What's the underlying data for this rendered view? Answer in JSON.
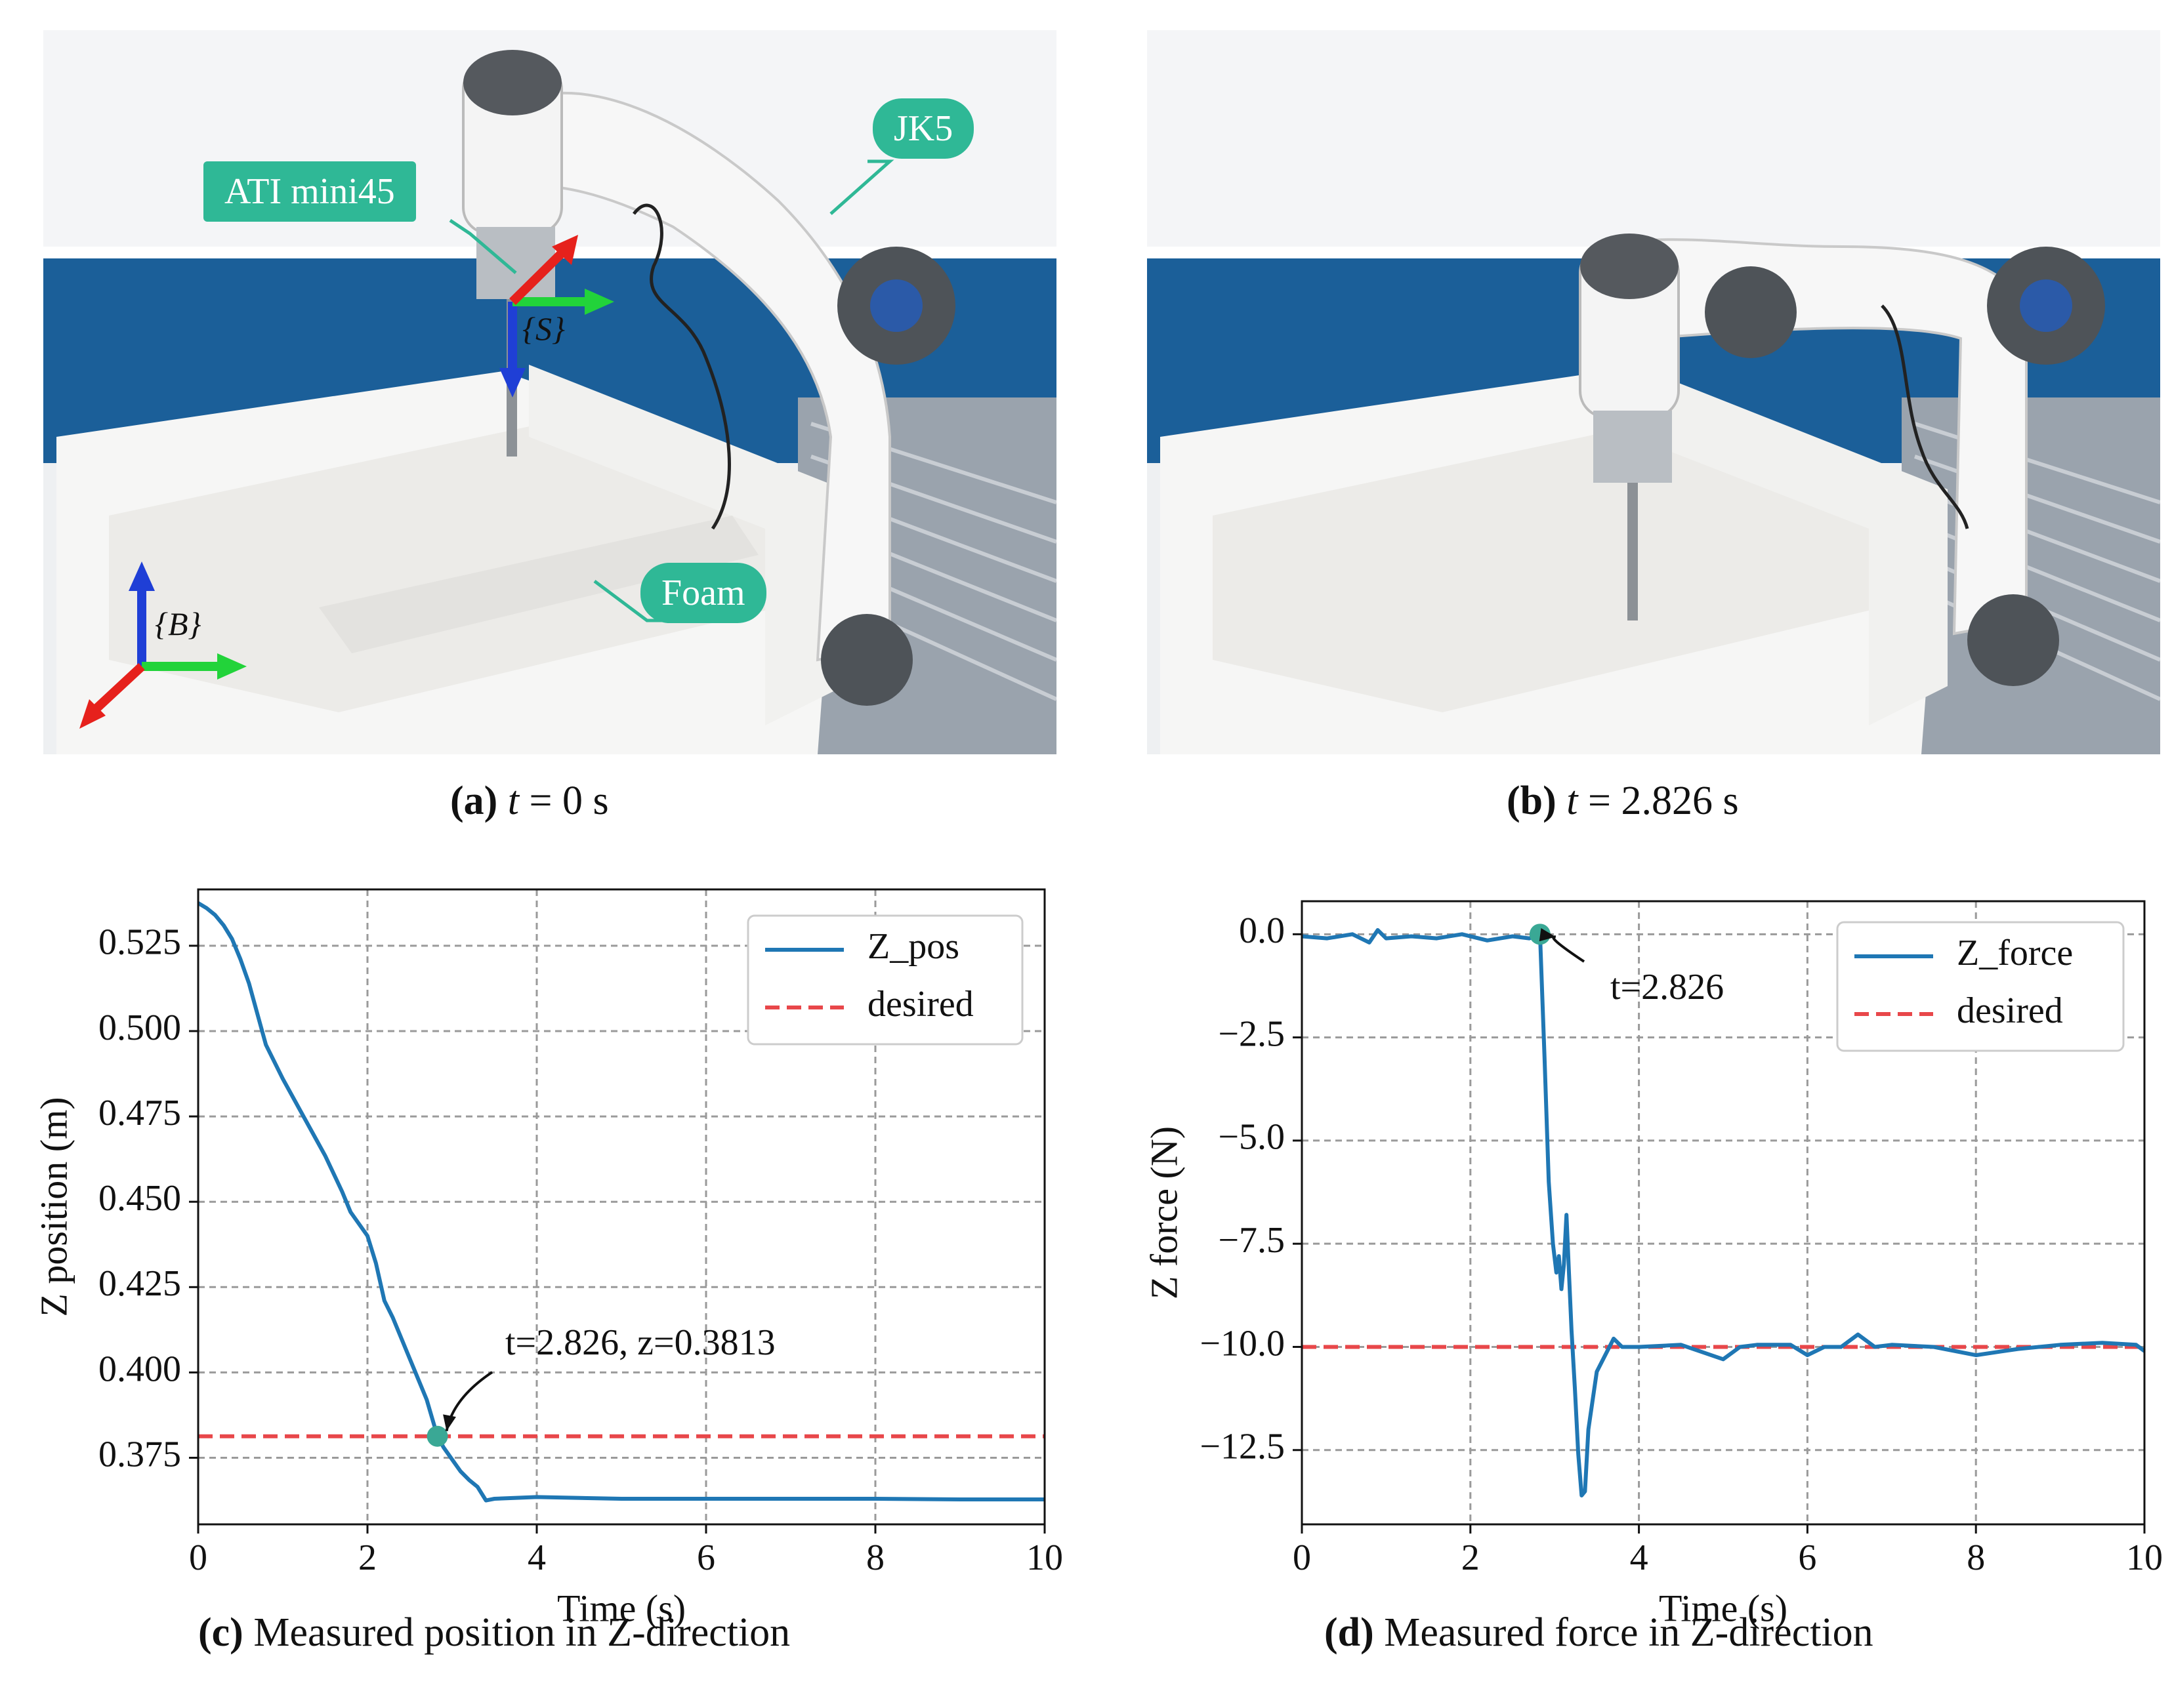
{
  "panels": {
    "a": {
      "letter": "(a)",
      "caption_var": "t",
      "caption_eq": " = 0 s",
      "labels": {
        "sensor": "ATI mini45",
        "robot": "JK5",
        "foam": "Foam",
        "frame_s": "{S}",
        "frame_b": "{B}"
      }
    },
    "b": {
      "letter": "(b)",
      "caption_var": "t",
      "caption_eq": " = 2.826 s"
    },
    "c": {
      "letter": "(c)",
      "caption_text": " Measured position in Z-direction"
    },
    "d": {
      "letter": "(d)",
      "caption_text": " Measured force in Z-direction"
    }
  },
  "colors": {
    "series": "#1f77b4",
    "desired": "#e8474a",
    "marker": "#3aa895",
    "callout": "#2fb896"
  },
  "chart_data": [
    {
      "type": "line",
      "xlabel": "Time (s)",
      "ylabel": "Z position (m)",
      "xlim": [
        0,
        10
      ],
      "ylim": [
        0.3555,
        0.5415
      ],
      "xticks": [
        0,
        2,
        4,
        6,
        8,
        10
      ],
      "yticks": [
        0.375,
        0.4,
        0.425,
        0.45,
        0.475,
        0.5,
        0.525
      ],
      "ytick_labels": [
        "0.375",
        "0.400",
        "0.425",
        "0.450",
        "0.475",
        "0.500",
        "0.525"
      ],
      "grid": true,
      "legend": "top-right",
      "legend_entries": [
        "Z_pos",
        "desired"
      ],
      "series": [
        {
          "name": "Z_pos",
          "x": [
            0,
            0.1,
            0.2,
            0.3,
            0.4,
            0.5,
            0.6,
            0.7,
            0.8,
            0.9,
            1.0,
            1.2,
            1.4,
            1.5,
            1.7,
            1.8,
            2.0,
            2.1,
            2.2,
            2.3,
            2.5,
            2.6,
            2.7,
            2.826,
            2.9,
            3.0,
            3.1,
            3.2,
            3.3,
            3.4,
            3.5,
            4.0,
            5.0,
            6.0,
            7.0,
            8.0,
            9.0,
            10.0
          ],
          "y": [
            0.5375,
            0.536,
            0.534,
            0.531,
            0.527,
            0.521,
            0.514,
            0.505,
            0.496,
            0.491,
            0.486,
            0.477,
            0.468,
            0.4635,
            0.453,
            0.447,
            0.44,
            0.432,
            0.421,
            0.416,
            0.404,
            0.398,
            0.392,
            0.3813,
            0.378,
            0.3745,
            0.371,
            0.3685,
            0.3665,
            0.3625,
            0.363,
            0.3635,
            0.363,
            0.363,
            0.363,
            0.363,
            0.3628,
            0.3628
          ]
        },
        {
          "name": "desired",
          "x": [
            0,
            10
          ],
          "y": [
            0.3813,
            0.3813
          ]
        }
      ],
      "annotation": {
        "text": "t=2.826, z=0.3813",
        "x": 2.826,
        "y": 0.3813
      }
    },
    {
      "type": "line",
      "xlabel": "Time (s)",
      "ylabel": "Z force (N)",
      "xlim": [
        0,
        10
      ],
      "ylim": [
        -14.3,
        0.8
      ],
      "xticks": [
        0,
        2,
        4,
        6,
        8,
        10
      ],
      "yticks": [
        0,
        -2.5,
        -5,
        -7.5,
        -10,
        -12.5
      ],
      "ytick_labels": [
        "0.0",
        "−2.5",
        "−5.0",
        "−7.5",
        "−10.0",
        "−12.5"
      ],
      "grid": true,
      "legend": "top-right",
      "legend_entries": [
        "Z_force",
        "desired"
      ],
      "series": [
        {
          "name": "Z_force",
          "x": [
            0,
            0.3,
            0.6,
            0.8,
            0.9,
            1.0,
            1.3,
            1.6,
            1.9,
            2.2,
            2.5,
            2.7,
            2.826,
            2.88,
            2.93,
            2.98,
            3.02,
            3.05,
            3.08,
            3.11,
            3.14,
            3.17,
            3.2,
            3.24,
            3.28,
            3.32,
            3.36,
            3.4,
            3.5,
            3.6,
            3.7,
            3.8,
            4.0,
            4.5,
            5.0,
            5.2,
            5.4,
            5.8,
            6.0,
            6.2,
            6.4,
            6.6,
            6.8,
            7.0,
            7.5,
            8.0,
            8.5,
            9.0,
            9.5,
            9.9,
            10.0
          ],
          "y": [
            -0.05,
            -0.1,
            0.0,
            -0.2,
            0.1,
            -0.1,
            -0.05,
            -0.1,
            0.0,
            -0.15,
            -0.05,
            -0.1,
            0.0,
            -3.0,
            -6.0,
            -7.5,
            -8.2,
            -7.8,
            -8.6,
            -8.0,
            -6.8,
            -8.2,
            -9.6,
            -11.0,
            -12.6,
            -13.6,
            -13.5,
            -12.0,
            -10.6,
            -10.2,
            -9.8,
            -10.0,
            -10.0,
            -9.95,
            -10.3,
            -10.0,
            -9.95,
            -9.95,
            -10.2,
            -10.0,
            -10.0,
            -9.7,
            -10.0,
            -9.95,
            -10.0,
            -10.2,
            -10.05,
            -9.95,
            -9.9,
            -9.95,
            -10.1
          ]
        },
        {
          "name": "desired",
          "x": [
            0,
            10
          ],
          "y": [
            -10,
            -10
          ]
        }
      ],
      "annotation": {
        "text": "t=2.826",
        "x": 2.826,
        "y": 0.0
      }
    }
  ]
}
